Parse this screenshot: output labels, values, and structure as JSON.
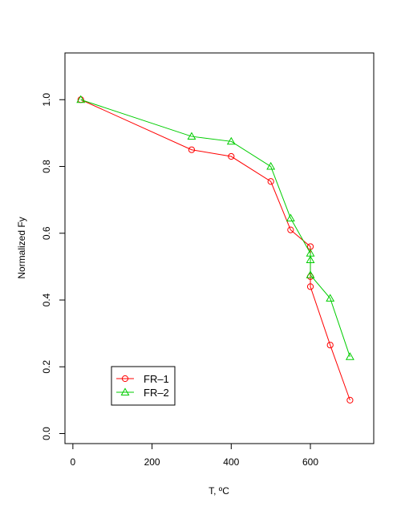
{
  "chart_data": {
    "type": "line",
    "title": "",
    "xlabel": "T, ºC",
    "ylabel": "Normalized Fy",
    "xlim": [
      -20,
      760
    ],
    "ylim": [
      -0.03,
      1.14
    ],
    "x_ticks": [
      0,
      200,
      400,
      600
    ],
    "x_tick_labels": [
      "0",
      "200",
      "400",
      "600"
    ],
    "y_ticks": [
      0.0,
      0.2,
      0.4,
      0.6,
      0.8,
      1.0
    ],
    "y_tick_labels": [
      "0.0",
      "0.2",
      "0.4",
      "0.6",
      "0.8",
      "1.0"
    ],
    "grid": false,
    "legend_position": "bottom-left",
    "series": [
      {
        "name": "FR–1",
        "color": "#ff0000",
        "marker": "circle",
        "x": [
          20,
          300,
          400,
          500,
          550,
          600,
          600,
          600,
          650,
          700
        ],
        "y": [
          1.0,
          0.85,
          0.83,
          0.755,
          0.61,
          0.56,
          0.47,
          0.44,
          0.265,
          0.1
        ]
      },
      {
        "name": "FR–2",
        "color": "#00cd00",
        "marker": "triangle",
        "x": [
          20,
          300,
          400,
          500,
          550,
          600,
          600,
          600,
          650,
          700
        ],
        "y": [
          1.0,
          0.89,
          0.875,
          0.8,
          0.645,
          0.54,
          0.52,
          0.475,
          0.405,
          0.23
        ]
      }
    ]
  }
}
